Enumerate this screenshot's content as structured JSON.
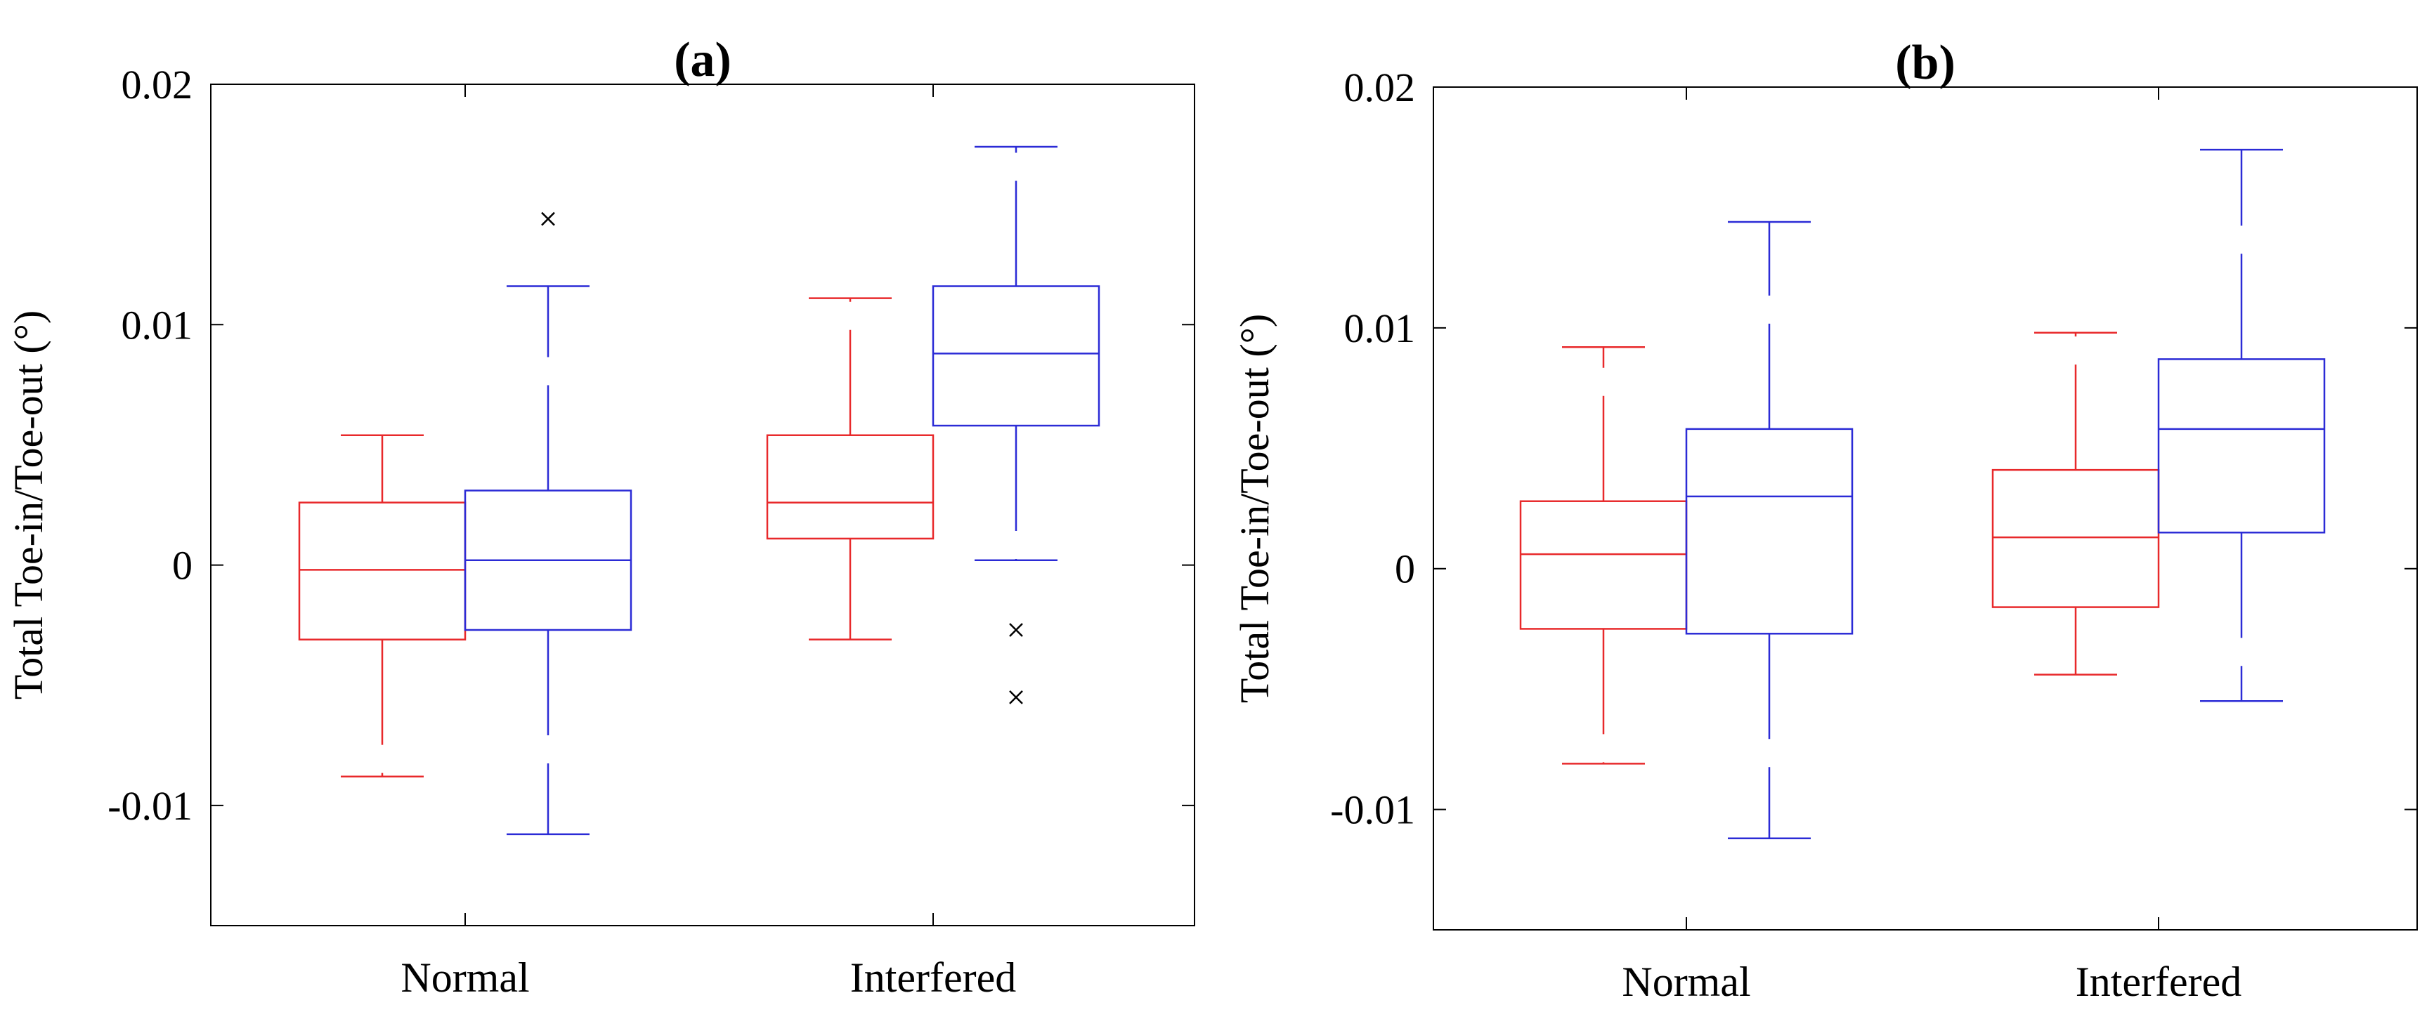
{
  "chart_data": [
    {
      "type": "box",
      "panel": "a",
      "title_main": "a",
      "ylabel": "Total Toe-in/Toe-out (°)",
      "xlabel": "",
      "ylim": [
        -0.015,
        0.02
      ],
      "yticks": [
        -0.01,
        0,
        0.01,
        0.02
      ],
      "ytick_labels": [
        "-0.01",
        "0",
        "0.01",
        "0.02"
      ],
      "categories": [
        "Normal",
        "Interfered"
      ],
      "boxes": [
        {
          "group": "Normal",
          "series": "red",
          "color": "#e8292b",
          "whisker_low": -0.0088,
          "q1": -0.0031,
          "median": -0.0002,
          "q3": 0.0026,
          "whisker_high": 0.0054,
          "outliers": []
        },
        {
          "group": "Normal",
          "series": "blue",
          "color": "#2b2bd6",
          "whisker_low": -0.0112,
          "q1": -0.0027,
          "median": 0.0002,
          "q3": 0.0031,
          "whisker_high": 0.0116,
          "outliers": [
            0.0144
          ]
        },
        {
          "group": "Interfered",
          "series": "red",
          "color": "#e8292b",
          "whisker_low": -0.0031,
          "q1": 0.0011,
          "median": 0.0026,
          "q3": 0.0054,
          "whisker_high": 0.0111,
          "outliers": []
        },
        {
          "group": "Interfered",
          "series": "blue",
          "color": "#2b2bd6",
          "whisker_low": 0.0002,
          "q1": 0.0058,
          "median": 0.0088,
          "q3": 0.0116,
          "whisker_high": 0.0174,
          "outliers": [
            -0.0027,
            -0.0055
          ]
        }
      ]
    },
    {
      "type": "box",
      "panel": "b",
      "title_main": "b",
      "ylabel": "Total Toe-in/Toe-out (°)",
      "xlabel": "",
      "ylim": [
        -0.015,
        0.02
      ],
      "yticks": [
        -0.01,
        0,
        0.01,
        0.02
      ],
      "ytick_labels": [
        "-0.01",
        "0",
        "0.01",
        "0.02"
      ],
      "categories": [
        "Normal",
        "Interfered"
      ],
      "boxes": [
        {
          "group": "Normal",
          "series": "red",
          "color": "#e8292b",
          "whisker_low": -0.0081,
          "q1": -0.0025,
          "median": 0.0006,
          "q3": 0.0028,
          "whisker_high": 0.0092,
          "outliers": []
        },
        {
          "group": "Normal",
          "series": "blue",
          "color": "#2b2bd6",
          "whisker_low": -0.0112,
          "q1": -0.0027,
          "median": 0.003,
          "q3": 0.0058,
          "whisker_high": 0.0144,
          "outliers": []
        },
        {
          "group": "Interfered",
          "series": "red",
          "color": "#e8292b",
          "whisker_low": -0.0044,
          "q1": -0.0016,
          "median": 0.0013,
          "q3": 0.0041,
          "whisker_high": 0.0098,
          "outliers": []
        },
        {
          "group": "Interfered",
          "series": "blue",
          "color": "#2b2bd6",
          "whisker_low": -0.0055,
          "q1": 0.0015,
          "median": 0.0058,
          "q3": 0.0087,
          "whisker_high": 0.0174,
          "outliers": []
        }
      ]
    }
  ]
}
